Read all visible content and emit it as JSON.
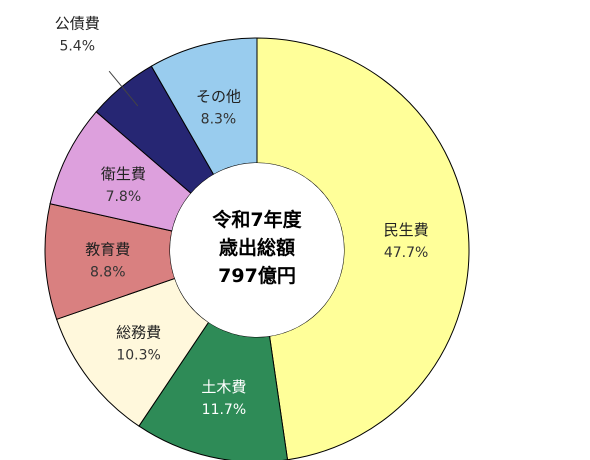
{
  "chart_data": {
    "type": "pie",
    "donut": true,
    "center_lines": [
      "令和7年度",
      "歳出総額",
      "797億円"
    ],
    "categories": [
      "民生費",
      "土木費",
      "総務費",
      "教育費",
      "衛生費",
      "公債費",
      "その他"
    ],
    "values": [
      47.7,
      11.7,
      10.3,
      8.8,
      7.8,
      5.4,
      8.3
    ],
    "value_labels": [
      "47.7%",
      "11.7%",
      "10.3%",
      "8.8%",
      "7.8%",
      "5.4%",
      "8.3%"
    ],
    "colors": [
      "#FFFF99",
      "#2E8B57",
      "#FFF8DC",
      "#D98080",
      "#DDA0DD",
      "#262673",
      "#99CCEE"
    ],
    "label_positions": [
      "inside",
      "inside",
      "inside",
      "inside",
      "inside",
      "outside",
      "inside"
    ]
  }
}
